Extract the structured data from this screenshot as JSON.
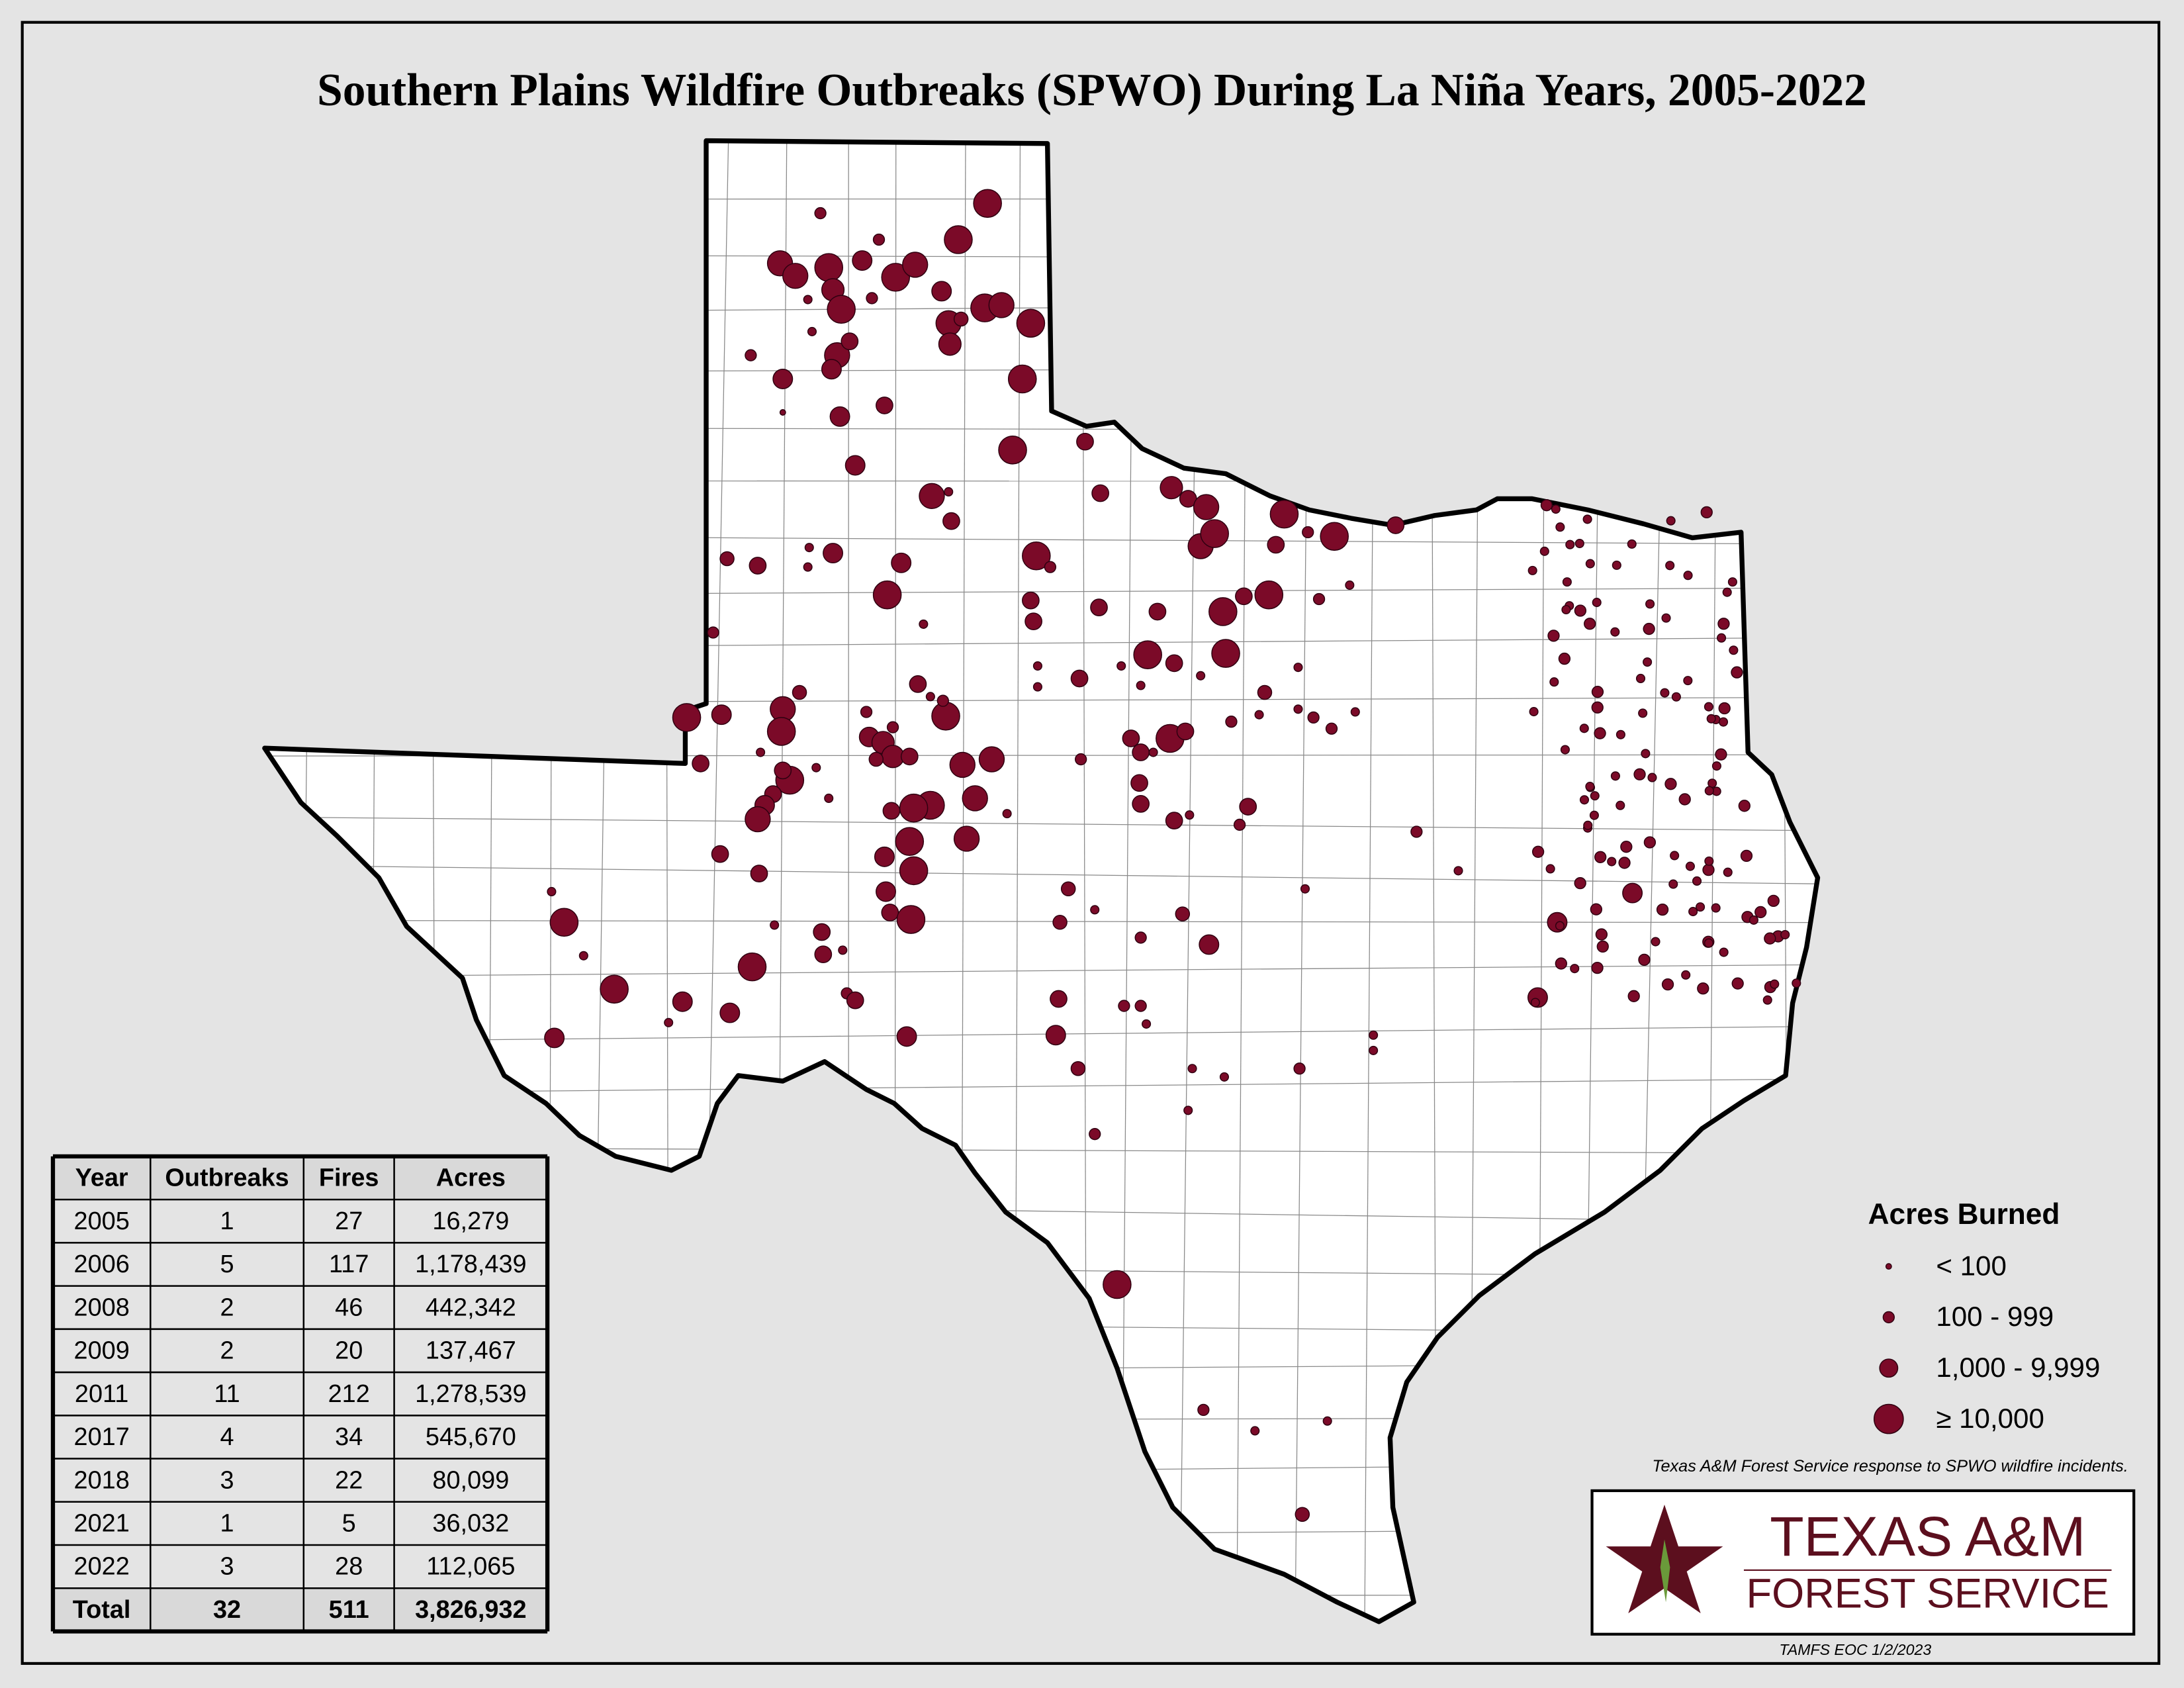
{
  "title": "Southern Plains Wildfire Outbreaks (SPWO) During La Niña Years, 2005-2022",
  "table": {
    "columns": [
      "Year",
      "Outbreaks",
      "Fires",
      "Acres"
    ],
    "rows": [
      [
        "2005",
        "1",
        "27",
        "16,279"
      ],
      [
        "2006",
        "5",
        "117",
        "1,178,439"
      ],
      [
        "2008",
        "2",
        "46",
        "442,342"
      ],
      [
        "2009",
        "2",
        "20",
        "137,467"
      ],
      [
        "2011",
        "11",
        "212",
        "1,278,539"
      ],
      [
        "2017",
        "4",
        "34",
        "545,670"
      ],
      [
        "2018",
        "3",
        "22",
        "80,099"
      ],
      [
        "2021",
        "1",
        "5",
        "36,032"
      ],
      [
        "2022",
        "3",
        "28",
        "112,065"
      ]
    ],
    "total": [
      "Total",
      "32",
      "511",
      "3,826,932"
    ]
  },
  "legend": {
    "title": "Acres Burned",
    "items": [
      "< 100",
      "100 - 999",
      "1,000 - 9,999",
      "≥ 10,000"
    ]
  },
  "note": "Texas A&M Forest Service response to SPWO wildfire incidents.",
  "logo": {
    "line1": "TEXAS A&M",
    "line2": "FOREST SERVICE"
  },
  "credit": "TAMFS EOC 1/2/2023"
}
